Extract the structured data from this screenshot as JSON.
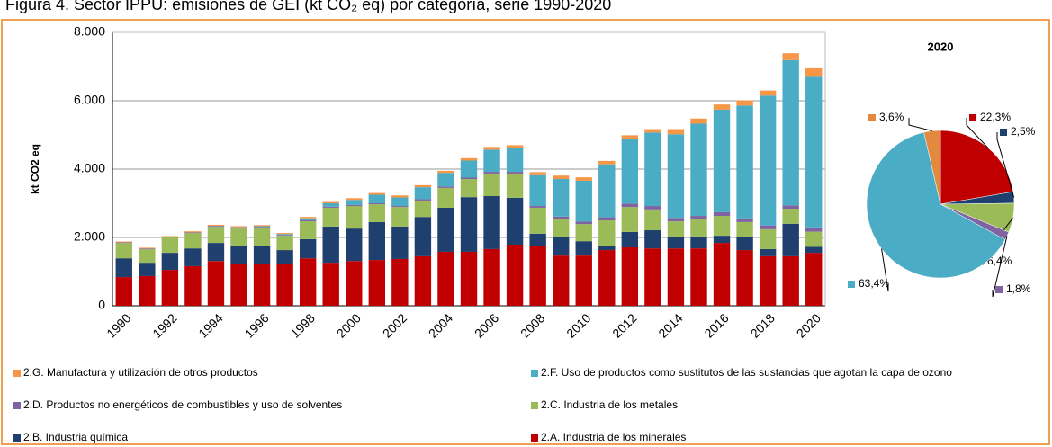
{
  "title": "Figura 4. Sector IPPU: emisiones de GEI (kt CO₂ eq) por categoría, serie 1990-2020",
  "chart_data": [
    {
      "type": "stacked-bar",
      "ylabel": "kt CO2 eq",
      "categories": [
        "1990",
        null,
        "1992",
        null,
        "1994",
        null,
        "1996",
        null,
        "1998",
        null,
        "2000",
        null,
        "2002",
        null,
        "2004",
        null,
        "2006",
        null,
        "2008",
        null,
        "2010",
        null,
        "2012",
        null,
        "2014",
        null,
        "2016",
        null,
        "2018",
        null,
        "2020"
      ],
      "ylim": [
        0,
        8000
      ],
      "yticks": [
        0,
        {
          "value": 2000,
          "label": "2.000"
        },
        {
          "value": 4000,
          "label": "4.000"
        },
        {
          "value": 6000,
          "label": "6.000"
        },
        {
          "value": 8000,
          "label": "8.000"
        }
      ],
      "grid": true,
      "series": [
        {
          "name": "2.A. Industria de los minerales",
          "color": "#c00000",
          "values": [
            840,
            870,
            1050,
            1160,
            1310,
            1230,
            1210,
            1210,
            1390,
            1260,
            1310,
            1340,
            1370,
            1450,
            1580,
            1580,
            1660,
            1790,
            1760,
            1470,
            1470,
            1630,
            1710,
            1680,
            1680,
            1680,
            1840,
            1630,
            1450,
            1450,
            1550
          ]
        },
        {
          "name": "2.B. Industria química",
          "color": "#1f3f6e",
          "values": [
            550,
            390,
            500,
            520,
            530,
            510,
            550,
            420,
            560,
            1060,
            950,
            1110,
            950,
            1150,
            1290,
            1600,
            1550,
            1370,
            350,
            530,
            420,
            130,
            450,
            530,
            320,
            350,
            210,
            370,
            210,
            950,
            174
          ]
        },
        {
          "name": "2.C. Industria de los metales",
          "color": "#9bbb59",
          "values": [
            450,
            400,
            450,
            450,
            470,
            520,
            530,
            420,
            520,
            550,
            660,
            520,
            570,
            480,
            580,
            530,
            660,
            710,
            760,
            550,
            500,
            740,
            730,
            610,
            470,
            500,
            580,
            450,
            580,
            440,
            445
          ]
        },
        {
          "name": "2.D. Productos no energéticos de combustibles y uso de solventes",
          "color": "#8064a2",
          "values": [
            20,
            20,
            20,
            20,
            20,
            20,
            20,
            20,
            30,
            30,
            30,
            30,
            30,
            40,
            40,
            40,
            50,
            50,
            50,
            60,
            70,
            90,
            100,
            100,
            100,
            100,
            110,
            110,
            110,
            100,
            125
          ]
        },
        {
          "name": "2.F. Uso de productos como sustitutos de las sustancias que agotan la capa de ozono",
          "color": "#4bacc6",
          "values": [
            0,
            0,
            0,
            0,
            10,
            20,
            20,
            30,
            60,
            100,
            150,
            250,
            250,
            350,
            400,
            500,
            650,
            700,
            900,
            1100,
            1200,
            1550,
            1900,
            2150,
            2450,
            2700,
            3000,
            3300,
            3800,
            4250,
            4406
          ]
        },
        {
          "name": "2.G. Manufactura y utilización de otros productos",
          "color": "#f79646",
          "values": [
            20,
            20,
            20,
            30,
            30,
            30,
            30,
            30,
            40,
            40,
            50,
            50,
            60,
            60,
            60,
            70,
            80,
            80,
            90,
            100,
            100,
            100,
            100,
            100,
            150,
            150,
            150,
            150,
            150,
            200,
            250
          ]
        }
      ]
    },
    {
      "type": "pie",
      "title": "2020",
      "values": [
        22.3,
        2.5,
        6.4,
        1.8,
        63.4,
        3.6
      ],
      "value_labels": [
        "22,3%",
        "2,5%",
        "6,4%",
        "1,8%",
        "63,4%",
        "3,6%"
      ],
      "colors": [
        "#c00000",
        "#1f3f6e",
        "#9bbb59",
        "#8064a2",
        "#4bacc6",
        "#e3893f"
      ]
    }
  ]
}
